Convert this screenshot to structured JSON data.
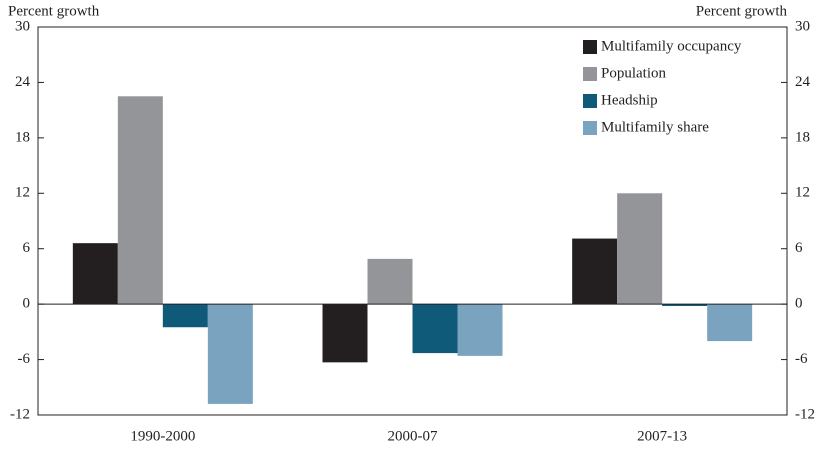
{
  "chart_data": {
    "type": "bar",
    "y_label": "Percent growth",
    "y2_label": "Percent growth",
    "categories": [
      "1990-2000",
      "2000-07",
      "2007-13"
    ],
    "series": [
      {
        "name": "Multifamily occupancy",
        "color": "#231f20",
        "values": [
          6.6,
          -6.3,
          7.1
        ]
      },
      {
        "name": "Population",
        "color": "#939598",
        "values": [
          22.5,
          4.9,
          12.0
        ]
      },
      {
        "name": "Headship",
        "color": "#0e5a78",
        "values": [
          -2.5,
          -5.3,
          -0.2
        ]
      },
      {
        "name": "Multifamily share",
        "color": "#7aa3c0",
        "values": [
          -10.8,
          -5.6,
          -4.0
        ]
      }
    ],
    "ylim": [
      -12,
      30
    ],
    "yticks": [
      -12,
      -6,
      0,
      6,
      12,
      18,
      24,
      30
    ],
    "y2lim": [
      -12,
      30
    ],
    "y2ticks": [
      -12,
      -6,
      0,
      6,
      12,
      18,
      24,
      30
    ],
    "legend": "upper right"
  }
}
